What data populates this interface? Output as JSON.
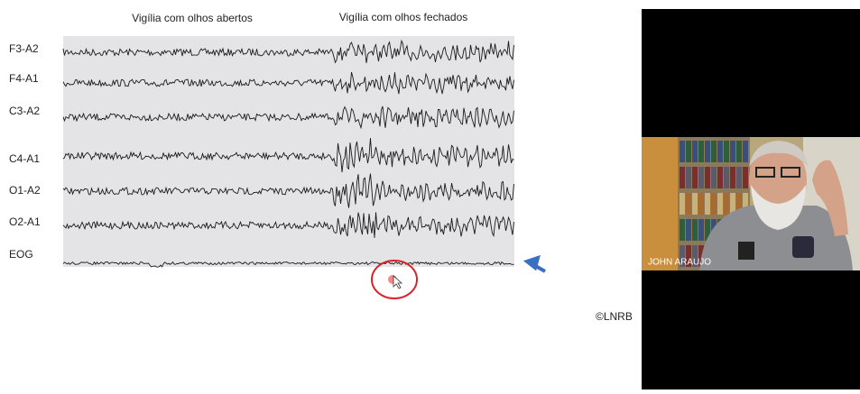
{
  "slide": {
    "headings": [
      "Vigília com olhos abertos",
      "Vigília com olhos fechados"
    ],
    "channels": [
      "F3-A2",
      "F4-A1",
      "C3-A2",
      "C4-A1",
      "O1-A2",
      "O2-A1",
      "EOG"
    ],
    "credit": "©LNRB"
  },
  "video": {
    "participant": "JOHN ARAUJO"
  }
}
